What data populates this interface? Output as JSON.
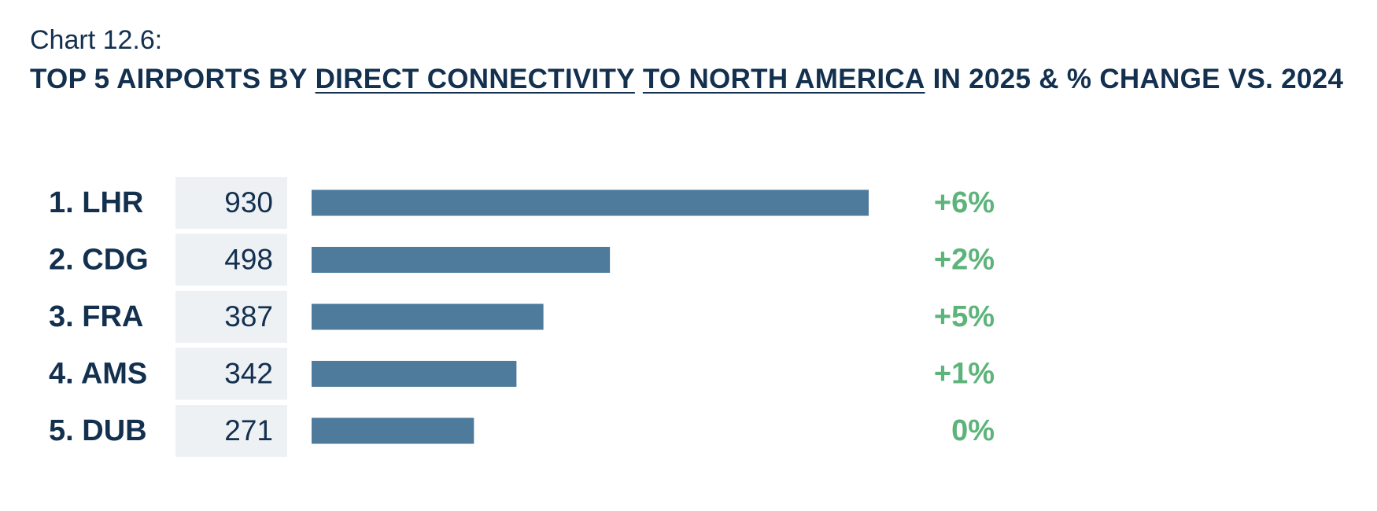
{
  "chart_data": {
    "type": "bar",
    "chart_number": "Chart 12.6:",
    "title_parts": [
      {
        "text": "TOP 5 AIRPORTS BY",
        "underline": false
      },
      {
        "text": "DIRECT CONNECTIVITY",
        "underline": true
      },
      {
        "text": "TO NORTH AMERICA",
        "underline": true
      },
      {
        "text": "IN 2025 & % CHANGE VS. 2024",
        "underline": false
      }
    ],
    "categories": [
      "1. LHR",
      "2. CDG",
      "3. FRA",
      "4. AMS",
      "5. DUB"
    ],
    "values": [
      930,
      498,
      387,
      342,
      271
    ],
    "color": "#4e7a9b",
    "change": {
      "values": [
        6,
        2,
        5,
        1,
        0
      ],
      "value_labels": [
        "+6%",
        "+2%",
        "+5%",
        "+1%",
        "0%"
      ],
      "color": "#5db47a"
    }
  }
}
